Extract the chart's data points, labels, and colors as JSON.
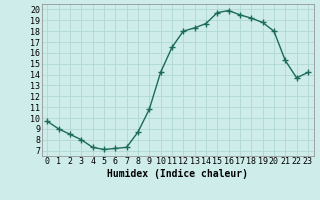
{
  "x": [
    0,
    1,
    2,
    3,
    4,
    5,
    6,
    7,
    8,
    9,
    10,
    11,
    12,
    13,
    14,
    15,
    16,
    17,
    18,
    19,
    20,
    21,
    22,
    23
  ],
  "y": [
    9.7,
    9.0,
    8.5,
    8.0,
    7.3,
    7.1,
    7.2,
    7.3,
    8.7,
    10.8,
    14.2,
    16.5,
    18.0,
    18.3,
    18.7,
    19.7,
    19.9,
    19.5,
    19.2,
    18.8,
    18.0,
    15.3,
    13.7,
    14.2
  ],
  "line_color": "#1a6b5a",
  "marker": "+",
  "marker_size": 4,
  "line_width": 1.0,
  "bg_color": "#ceecea",
  "grid_color": "#b0d8d4",
  "xlabel": "Humidex (Indice chaleur)",
  "xlabel_fontsize": 7,
  "xtick_labels": [
    "0",
    "1",
    "2",
    "3",
    "4",
    "5",
    "6",
    "7",
    "8",
    "9",
    "10",
    "11",
    "12",
    "13",
    "14",
    "15",
    "16",
    "17",
    "18",
    "19",
    "20",
    "21",
    "22",
    "23"
  ],
  "ytick_labels": [
    "7",
    "8",
    "9",
    "10",
    "11",
    "12",
    "13",
    "14",
    "15",
    "16",
    "17",
    "18",
    "19",
    "20"
  ],
  "ylim": [
    6.5,
    20.5
  ],
  "xlim": [
    -0.5,
    23.5
  ],
  "tick_fontsize": 6
}
